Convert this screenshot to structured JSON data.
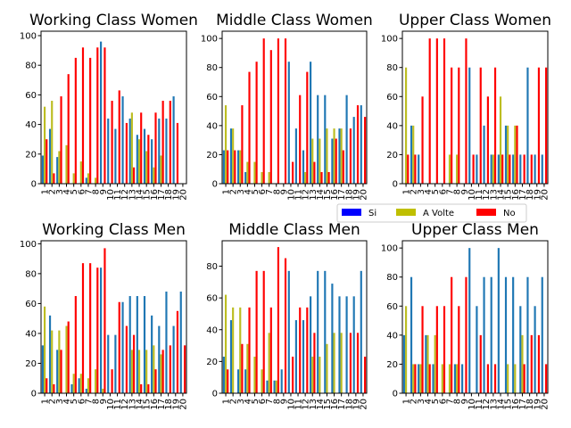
{
  "legend": {
    "placement": "center-right",
    "entries": [
      {
        "label": "Si",
        "color": "#0000ff"
      },
      {
        "label": "A Volte",
        "color": "#bfbf00"
      },
      {
        "label": "No",
        "color": "#ff0000"
      }
    ]
  },
  "colors": {
    "Si": "#1f77b4",
    "A Volte": "#bcbd22",
    "No": "#ff0000"
  },
  "chart_data": [
    {
      "type": "bar",
      "title": "Working Class Women",
      "categories": [
        "1",
        "2",
        "3",
        "4",
        "5",
        "6",
        "7",
        "8",
        "9",
        "10",
        "11",
        "12",
        "13",
        "14",
        "15",
        "16",
        "17",
        "18",
        "19",
        "20"
      ],
      "ylim": [
        0,
        103
      ],
      "yticks": [
        0,
        20,
        40,
        60,
        80,
        100
      ],
      "grid": false,
      "series": [
        {
          "name": "Si",
          "values": [
            19,
            37,
            18,
            0,
            0,
            0,
            4,
            0,
            96,
            44,
            37,
            59,
            44,
            33,
            37,
            30,
            44,
            44,
            59,
            0
          ]
        },
        {
          "name": "A Volte",
          "values": [
            52,
            56,
            22,
            26,
            7,
            15,
            7,
            4,
            0,
            0,
            0,
            0,
            48,
            30,
            22,
            11,
            19,
            0,
            0,
            0
          ]
        },
        {
          "name": "No",
          "values": [
            30,
            7,
            59,
            74,
            85,
            92,
            85,
            92,
            92,
            56,
            63,
            41,
            11,
            48,
            33,
            48,
            56,
            56,
            41,
            0
          ]
        }
      ]
    },
    {
      "type": "bar",
      "title": "Middle Class Women",
      "categories": [
        "1",
        "2",
        "3",
        "4",
        "5",
        "6",
        "7",
        "8",
        "9",
        "10",
        "11",
        "12",
        "13",
        "14",
        "15",
        "16",
        "17",
        "18",
        "19",
        "20"
      ],
      "ylim": [
        0,
        105
      ],
      "yticks": [
        0,
        20,
        40,
        60,
        80,
        100
      ],
      "grid": false,
      "series": [
        {
          "name": "Si",
          "values": [
            23,
            38,
            23,
            8,
            0,
            0,
            0,
            0,
            0,
            84,
            38,
            23,
            84,
            61,
            61,
            31,
            38,
            61,
            46,
            54
          ]
        },
        {
          "name": "A Volte",
          "values": [
            54,
            38,
            23,
            15,
            15,
            8,
            8,
            0,
            0,
            0,
            0,
            8,
            31,
            31,
            38,
            38,
            38,
            0,
            0,
            0
          ]
        },
        {
          "name": "No",
          "values": [
            23,
            23,
            54,
            77,
            84,
            100,
            92,
            100,
            100,
            15,
            61,
            77,
            15,
            8,
            8,
            31,
            23,
            38,
            54,
            46
          ]
        }
      ]
    },
    {
      "type": "bar",
      "title": "Upper Class Women",
      "categories": [
        "1",
        "2",
        "3",
        "4",
        "5",
        "6",
        "7",
        "8",
        "9",
        "10",
        "11",
        "12",
        "13",
        "14",
        "15",
        "16",
        "17",
        "18",
        "19",
        "20"
      ],
      "ylim": [
        0,
        105
      ],
      "yticks": [
        0,
        20,
        40,
        60,
        80,
        100
      ],
      "grid": false,
      "series": [
        {
          "name": "Si",
          "values": [
            0,
            40,
            20,
            0,
            0,
            0,
            0,
            0,
            0,
            80,
            20,
            40,
            20,
            20,
            40,
            20,
            20,
            80,
            20,
            20
          ]
        },
        {
          "name": "A Volte",
          "values": [
            80,
            40,
            0,
            0,
            0,
            0,
            20,
            20,
            0,
            0,
            0,
            0,
            20,
            60,
            40,
            40,
            0,
            0,
            0,
            0
          ]
        },
        {
          "name": "No",
          "values": [
            20,
            20,
            60,
            100,
            100,
            100,
            80,
            80,
            100,
            20,
            80,
            60,
            80,
            20,
            20,
            40,
            20,
            20,
            80,
            80
          ]
        }
      ]
    },
    {
      "type": "bar",
      "title": "Working Class Men",
      "categories": [
        "1",
        "2",
        "3",
        "4",
        "5",
        "6",
        "7",
        "8",
        "9",
        "10",
        "11",
        "12",
        "13",
        "14",
        "15",
        "16",
        "17",
        "18",
        "19",
        "20"
      ],
      "ylim": [
        0,
        102
      ],
      "yticks": [
        0,
        20,
        40,
        60,
        80,
        100
      ],
      "grid": false,
      "series": [
        {
          "name": "Si",
          "values": [
            32,
            52,
            29,
            0,
            6,
            10,
            3,
            0,
            84,
            39,
            39,
            61,
            65,
            65,
            65,
            52,
            45,
            68,
            45,
            68
          ]
        },
        {
          "name": "A Volte",
          "values": [
            58,
            42,
            42,
            45,
            13,
            13,
            10,
            16,
            3,
            0,
            0,
            0,
            29,
            29,
            29,
            32,
            26,
            0,
            0,
            0
          ]
        },
        {
          "name": "No",
          "values": [
            10,
            6,
            29,
            48,
            65,
            87,
            87,
            84,
            97,
            16,
            61,
            45,
            39,
            6,
            6,
            16,
            29,
            32,
            55,
            32
          ]
        }
      ]
    },
    {
      "type": "bar",
      "title": "Middle Class Men",
      "categories": [
        "1",
        "2",
        "3",
        "4",
        "5",
        "6",
        "7",
        "8",
        "9",
        "10",
        "11",
        "12",
        "13",
        "14",
        "15",
        "16",
        "17",
        "18",
        "19",
        "20"
      ],
      "ylim": [
        0,
        96
      ],
      "yticks": [
        0,
        20,
        40,
        60,
        80
      ],
      "grid": false,
      "series": [
        {
          "name": "Si",
          "values": [
            23,
            46,
            15,
            15,
            0,
            0,
            8,
            8,
            15,
            77,
            46,
            46,
            61,
            77,
            77,
            69,
            61,
            61,
            61,
            77
          ]
        },
        {
          "name": "A Volte",
          "values": [
            62,
            54,
            54,
            31,
            23,
            15,
            38,
            8,
            0,
            0,
            0,
            0,
            23,
            23,
            31,
            38,
            38,
            0,
            0,
            0
          ]
        },
        {
          "name": "No",
          "values": [
            15,
            0,
            31,
            54,
            77,
            77,
            54,
            92,
            85,
            23,
            54,
            54,
            38,
            0,
            0,
            0,
            0,
            38,
            38,
            23
          ]
        }
      ]
    },
    {
      "type": "bar",
      "title": "Upper Class Men",
      "categories": [
        "1",
        "2",
        "3",
        "4",
        "5",
        "6",
        "7",
        "8",
        "9",
        "10",
        "11",
        "12",
        "13",
        "14",
        "15",
        "16",
        "17",
        "18",
        "19",
        "20"
      ],
      "ylim": [
        0,
        105
      ],
      "yticks": [
        0,
        20,
        40,
        60,
        80,
        100
      ],
      "grid": false,
      "series": [
        {
          "name": "Si",
          "values": [
            40,
            80,
            20,
            40,
            20,
            0,
            0,
            20,
            20,
            100,
            60,
            80,
            80,
            100,
            80,
            80,
            60,
            80,
            60,
            80
          ]
        },
        {
          "name": "A Volte",
          "values": [
            60,
            20,
            20,
            40,
            40,
            20,
            20,
            20,
            0,
            0,
            0,
            0,
            0,
            0,
            20,
            20,
            40,
            0,
            0,
            0
          ]
        },
        {
          "name": "No",
          "values": [
            0,
            20,
            60,
            20,
            60,
            60,
            80,
            60,
            80,
            0,
            40,
            20,
            20,
            0,
            0,
            0,
            20,
            40,
            40,
            20
          ]
        }
      ]
    }
  ]
}
